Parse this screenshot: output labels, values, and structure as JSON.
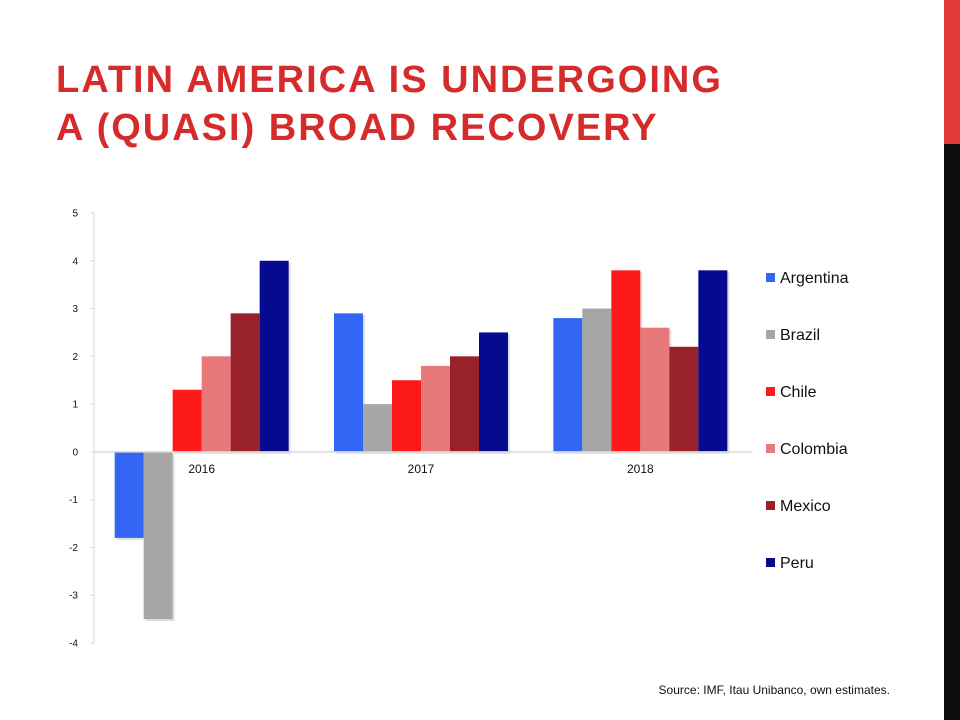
{
  "slide": {
    "title_line1": "LATIN AMERICA IS UNDERGOING",
    "title_line2": "A (QUASI) BROAD RECOVERY",
    "source": "Source: IMF, Itau Unibanco, own estimates.",
    "accent_colors": {
      "title": "#d62b2b",
      "bar_top": "#e03a3a",
      "bar_bottom": "#0d0d0d"
    }
  },
  "chart_data": {
    "type": "bar",
    "categories": [
      "2016",
      "2017",
      "2018"
    ],
    "ylim": [
      -4,
      5
    ],
    "yticks": [
      5,
      4,
      3,
      2,
      1,
      0,
      -1,
      -2,
      -3,
      -4
    ],
    "legend_position": "right",
    "grid": false,
    "series": [
      {
        "name": "Argentina",
        "color": "#3366f5",
        "values": [
          -1.8,
          2.9,
          2.8
        ]
      },
      {
        "name": "Brazil",
        "color": "#a6a6a6",
        "values": [
          -3.5,
          1.0,
          3.0
        ]
      },
      {
        "name": "Chile",
        "color": "#ff1a1a",
        "values": [
          1.3,
          1.5,
          3.8
        ]
      },
      {
        "name": "Colombia",
        "color": "#e8797b",
        "values": [
          2.0,
          1.8,
          2.6
        ]
      },
      {
        "name": "Mexico",
        "color": "#98212a",
        "values": [
          2.9,
          2.0,
          2.2
        ]
      },
      {
        "name": "Peru",
        "color": "#050a8f",
        "values": [
          4.0,
          2.5,
          3.8
        ]
      }
    ]
  }
}
